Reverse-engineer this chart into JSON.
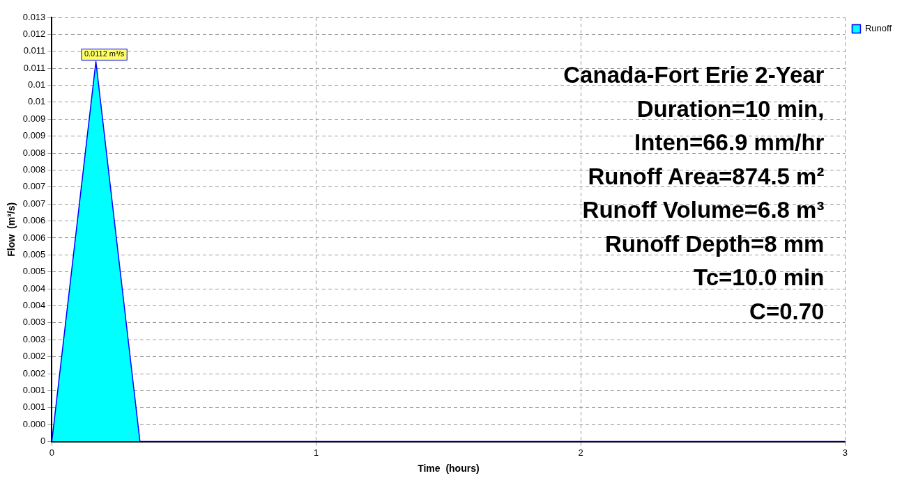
{
  "chart_data": {
    "type": "area",
    "xlabel": "Time  (hours)",
    "ylabel": "Flow  (m³/s)",
    "annotations": [
      "Canada-Fort Erie 2-Year",
      "Duration=10 min,",
      "Inten=66.9 mm/hr",
      "Runoff Area=874.5 m²",
      "Runoff Volume=6.8 m³",
      "Runoff Depth=8 mm",
      "Tc=10.0 min",
      "C=0.70"
    ],
    "x": [
      0,
      0.1667,
      0.3333,
      3
    ],
    "series": [
      {
        "name": "Runoff",
        "color": "#00ffff",
        "values": [
          0,
          0.0112,
          0,
          0
        ],
        "value_labels": [
          null,
          "0.0112 m³/s",
          null,
          null
        ]
      }
    ],
    "xlim": [
      0,
      3
    ],
    "xticks": [
      0,
      1,
      2,
      3
    ],
    "ylim": [
      0,
      0.0125
    ],
    "yticks": [
      0,
      {
        "value": 0.0005,
        "label": "0.000"
      },
      {
        "value": 0.001,
        "label": "0.001"
      },
      {
        "value": 0.0015,
        "label": "0.001"
      },
      {
        "value": 0.002,
        "label": "0.002"
      },
      {
        "value": 0.0025,
        "label": "0.002"
      },
      {
        "value": 0.003,
        "label": "0.003"
      },
      {
        "value": 0.0035,
        "label": "0.003"
      },
      {
        "value": 0.004,
        "label": "0.004"
      },
      {
        "value": 0.0045,
        "label": "0.004"
      },
      {
        "value": 0.005,
        "label": "0.005"
      },
      {
        "value": 0.0055,
        "label": "0.005"
      },
      {
        "value": 0.006,
        "label": "0.006"
      },
      {
        "value": 0.0065,
        "label": "0.006"
      },
      {
        "value": 0.007,
        "label": "0.007"
      },
      {
        "value": 0.0075,
        "label": "0.007"
      },
      {
        "value": 0.008,
        "label": "0.008"
      },
      {
        "value": 0.0085,
        "label": "0.008"
      },
      {
        "value": 0.009,
        "label": "0.009"
      },
      {
        "value": 0.0095,
        "label": "0.009"
      },
      {
        "value": 0.01,
        "label": "0.01"
      },
      {
        "value": 0.0105,
        "label": "0.01"
      },
      {
        "value": 0.011,
        "label": "0.011"
      },
      {
        "value": 0.0115,
        "label": "0.011"
      },
      {
        "value": 0.012,
        "label": "0.012"
      },
      {
        "value": 0.0125,
        "label": "0.013"
      }
    ],
    "grid": true,
    "legend": "top right",
    "marker": "none"
  }
}
